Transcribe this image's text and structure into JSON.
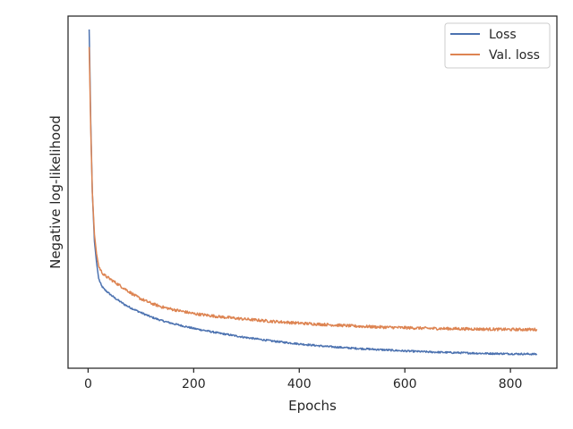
{
  "chart_data": {
    "type": "line",
    "title": "",
    "xlabel": "Epochs",
    "ylabel": "Negative log-likelihood",
    "xlim": [
      -38,
      888
    ],
    "ylim": [
      0.0,
      1.0
    ],
    "x_ticks": [
      0,
      200,
      400,
      600,
      800
    ],
    "y_ticks_shown": false,
    "grid": false,
    "legend_position": "upper right",
    "series": [
      {
        "name": "Loss",
        "color": "#4c72b0",
        "x": [
          2,
          3,
          5,
          8,
          12,
          16,
          20,
          25,
          30,
          40,
          50,
          60,
          70,
          80,
          90,
          100,
          120,
          140,
          160,
          180,
          200,
          250,
          300,
          350,
          400,
          450,
          500,
          550,
          600,
          650,
          700,
          750,
          800,
          850
        ],
        "y": [
          0.962,
          0.88,
          0.7,
          0.5,
          0.36,
          0.3,
          0.255,
          0.235,
          0.225,
          0.212,
          0.2,
          0.19,
          0.18,
          0.172,
          0.165,
          0.158,
          0.145,
          0.135,
          0.127,
          0.12,
          0.113,
          0.099,
          0.087,
          0.077,
          0.069,
          0.062,
          0.057,
          0.053,
          0.049,
          0.046,
          0.044,
          0.042,
          0.041,
          0.04
        ]
      },
      {
        "name": "Val. loss",
        "color": "#dd8452",
        "x": [
          2,
          3,
          5,
          8,
          12,
          16,
          20,
          25,
          30,
          40,
          50,
          60,
          70,
          80,
          90,
          100,
          120,
          140,
          160,
          180,
          200,
          250,
          300,
          350,
          400,
          450,
          500,
          550,
          600,
          650,
          700,
          750,
          800,
          850
        ],
        "y": [
          0.912,
          0.84,
          0.68,
          0.5,
          0.38,
          0.325,
          0.29,
          0.275,
          0.265,
          0.255,
          0.245,
          0.235,
          0.225,
          0.215,
          0.205,
          0.197,
          0.184,
          0.174,
          0.167,
          0.161,
          0.155,
          0.146,
          0.139,
          0.133,
          0.128,
          0.124,
          0.12,
          0.117,
          0.115,
          0.113,
          0.112,
          0.111,
          0.11,
          0.11
        ]
      }
    ]
  }
}
